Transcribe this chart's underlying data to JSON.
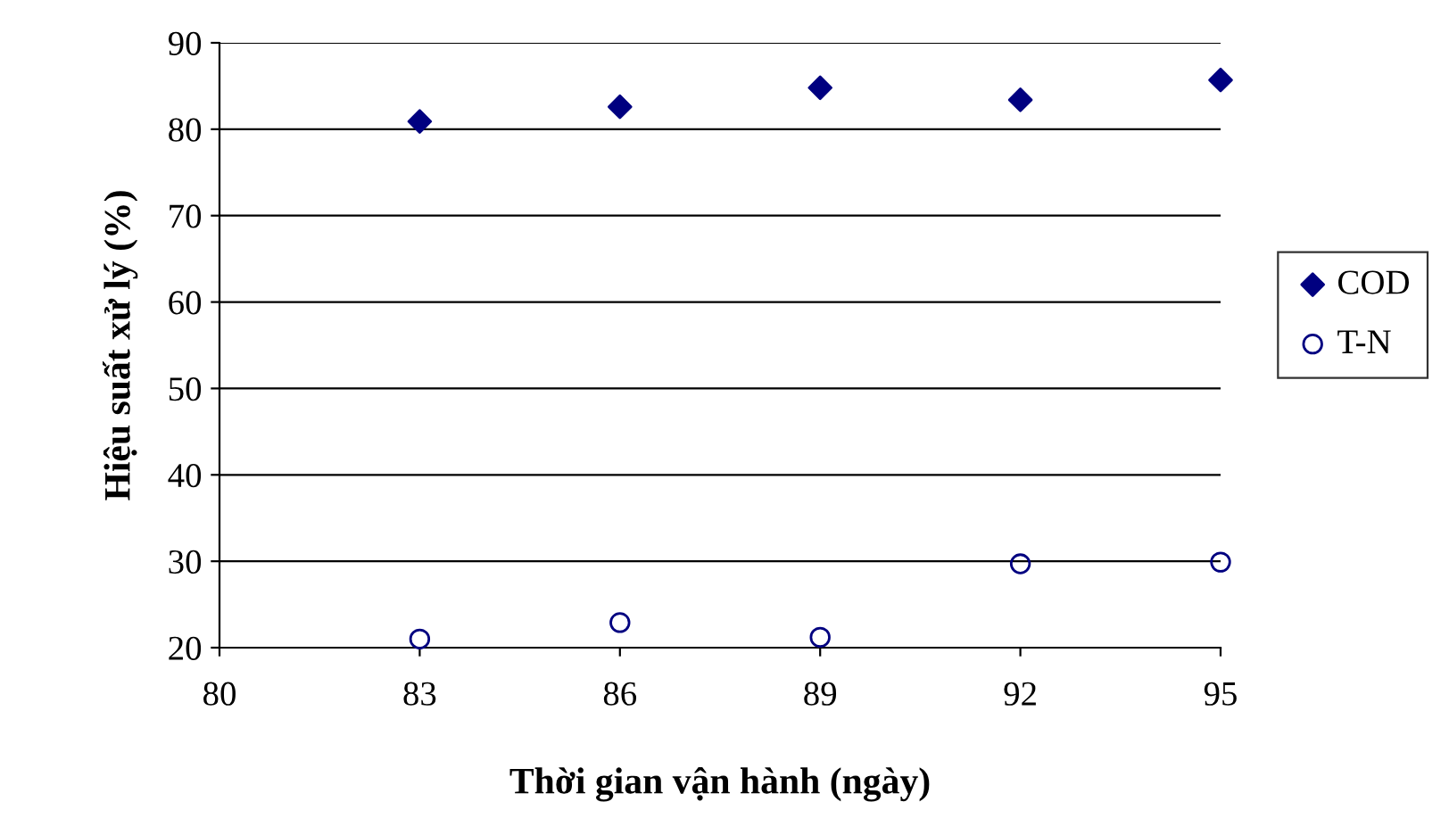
{
  "chart_data": {
    "type": "scatter",
    "xlabel": "Thời gian vận hành (ngày)",
    "ylabel": "Hiệu suất xử lý (%)",
    "x": [
      83,
      86,
      89,
      92,
      95
    ],
    "series": [
      {
        "name": "COD",
        "color": "#000080",
        "marker": "diamond",
        "values": [
          80.9,
          82.6,
          84.8,
          83.4,
          85.7
        ]
      },
      {
        "name": "T-N",
        "color": "#000080",
        "marker": "circle",
        "values": [
          21.0,
          22.9,
          21.2,
          29.7,
          29.9
        ]
      }
    ],
    "xlim": [
      80,
      95
    ],
    "xticks": [
      80,
      83,
      86,
      89,
      92,
      95
    ],
    "ylim": [
      20,
      90
    ],
    "yticks": [
      20,
      30,
      40,
      50,
      60,
      70,
      80,
      90
    ],
    "grid": "y",
    "legend": "right"
  }
}
